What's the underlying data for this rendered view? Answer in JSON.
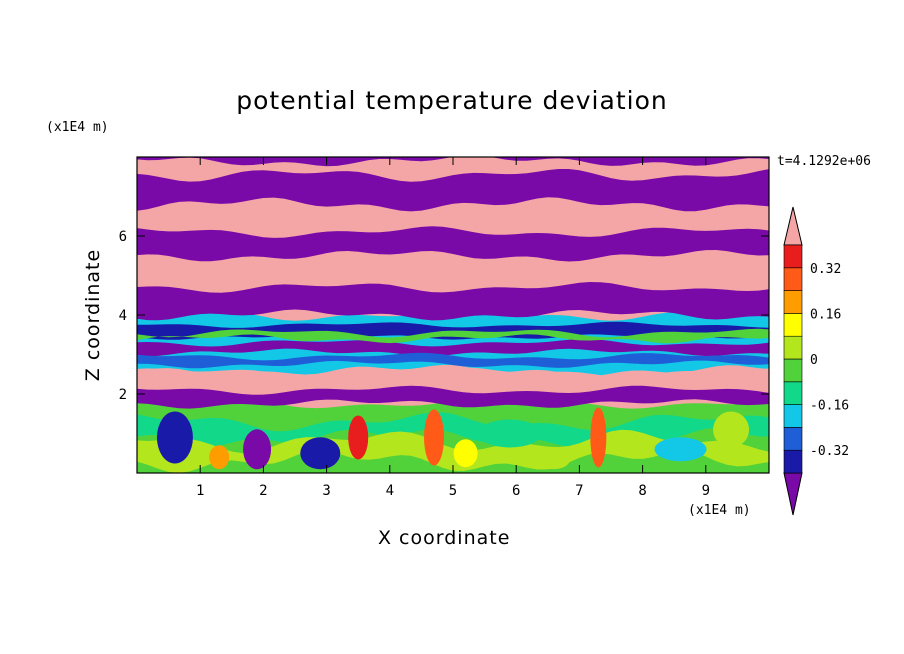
{
  "chart_data": {
    "type": "heatmap",
    "title": "potential temperature deviation",
    "xlabel": "X coordinate",
    "ylabel": "Z coordinate",
    "x_unit": "(x1E4 m)",
    "y_unit": "(x1E4 m)",
    "time_label": "t=4.1292e+06",
    "xlim": [
      0,
      10
    ],
    "ylim": [
      0,
      8
    ],
    "x_ticks": [
      1,
      2,
      3,
      4,
      5,
      6,
      7,
      8,
      9
    ],
    "y_ticks": [
      2,
      4,
      6
    ],
    "colorbar": {
      "labels": [
        "0.32",
        "0.16",
        "0",
        "-0.16",
        "-0.32"
      ],
      "levels": [
        -0.4,
        -0.32,
        -0.24,
        -0.16,
        -0.08,
        0,
        0.08,
        0.16,
        0.24,
        0.32,
        0.4
      ],
      "colors": [
        "#7a0aa8",
        "#1a1aa8",
        "#1e5fd8",
        "#12c8e6",
        "#12d88a",
        "#52d23a",
        "#b4e61e",
        "#ffff00",
        "#ff9c00",
        "#ff5a18",
        "#e81e1e",
        "#f4a6a6"
      ],
      "extend": "both"
    },
    "layers_top_to_bottom": [
      {
        "z_top": 8.0,
        "z_bottom": 7.55,
        "value": "above 0.4"
      },
      {
        "z_top": 7.55,
        "z_bottom": 6.8,
        "value": "below -0.4"
      },
      {
        "z_top": 6.8,
        "z_bottom": 6.1,
        "value": "above 0.4"
      },
      {
        "z_top": 6.1,
        "z_bottom": 5.5,
        "value": "below -0.4"
      },
      {
        "z_top": 5.5,
        "z_bottom": 4.7,
        "value": "above 0.4"
      },
      {
        "z_top": 4.7,
        "z_bottom": 4.0,
        "value": "below -0.4"
      },
      {
        "z_top": 4.0,
        "z_bottom": 2.6,
        "value": "mixed -0.4 to 0.4"
      },
      {
        "z_top": 2.6,
        "z_bottom": 1.7,
        "value": "above 0.4 / below -0.4"
      },
      {
        "z_top": 1.7,
        "z_bottom": 0.0,
        "value": "-0.24 to 0.32"
      }
    ]
  }
}
